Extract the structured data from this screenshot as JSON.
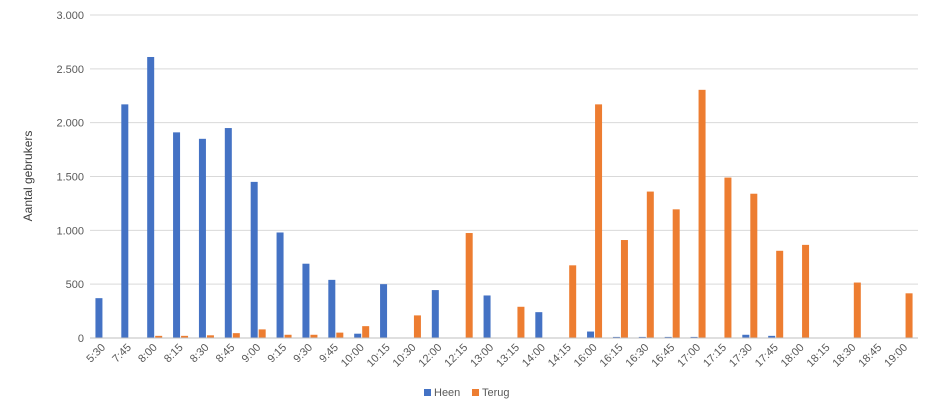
{
  "chart_data": {
    "type": "bar",
    "ylabel": "Aantal gebrukers",
    "ylim": [
      0,
      3000
    ],
    "yticks": [
      0,
      500,
      1000,
      1500,
      2000,
      2500,
      3000
    ],
    "ytick_labels": [
      "0",
      "500",
      "1.000",
      "1.500",
      "2.000",
      "2.500",
      "3.000"
    ],
    "grid": "horizontal",
    "legend": "bottom-center",
    "categories": [
      "5:30",
      "7:45",
      "8:00",
      "8:15",
      "8:30",
      "8:45",
      "9:00",
      "9:15",
      "9:30",
      "9:45",
      "10:00",
      "10:15",
      "10:30",
      "12:00",
      "12:15",
      "13:00",
      "13:15",
      "14:00",
      "14:15",
      "16:00",
      "16:15",
      "16:30",
      "16:45",
      "17:00",
      "17:15",
      "17:30",
      "17:45",
      "18:00",
      "18:15",
      "18:30",
      "18:45",
      "19:00"
    ],
    "series": [
      {
        "name": "Heen",
        "color": "#4472c4",
        "values": [
          370,
          2170,
          2610,
          1910,
          1850,
          1950,
          1450,
          980,
          690,
          540,
          40,
          500,
          0,
          445,
          0,
          395,
          0,
          240,
          0,
          60,
          10,
          10,
          10,
          10,
          0,
          30,
          20,
          0,
          0,
          0,
          0,
          0
        ]
      },
      {
        "name": "Terug",
        "color": "#ed7d31",
        "values": [
          0,
          0,
          20,
          20,
          25,
          45,
          80,
          30,
          30,
          50,
          110,
          0,
          210,
          0,
          975,
          0,
          290,
          0,
          675,
          2170,
          910,
          1360,
          1195,
          2305,
          1490,
          1340,
          810,
          865,
          0,
          515,
          0,
          415
        ]
      }
    ]
  }
}
